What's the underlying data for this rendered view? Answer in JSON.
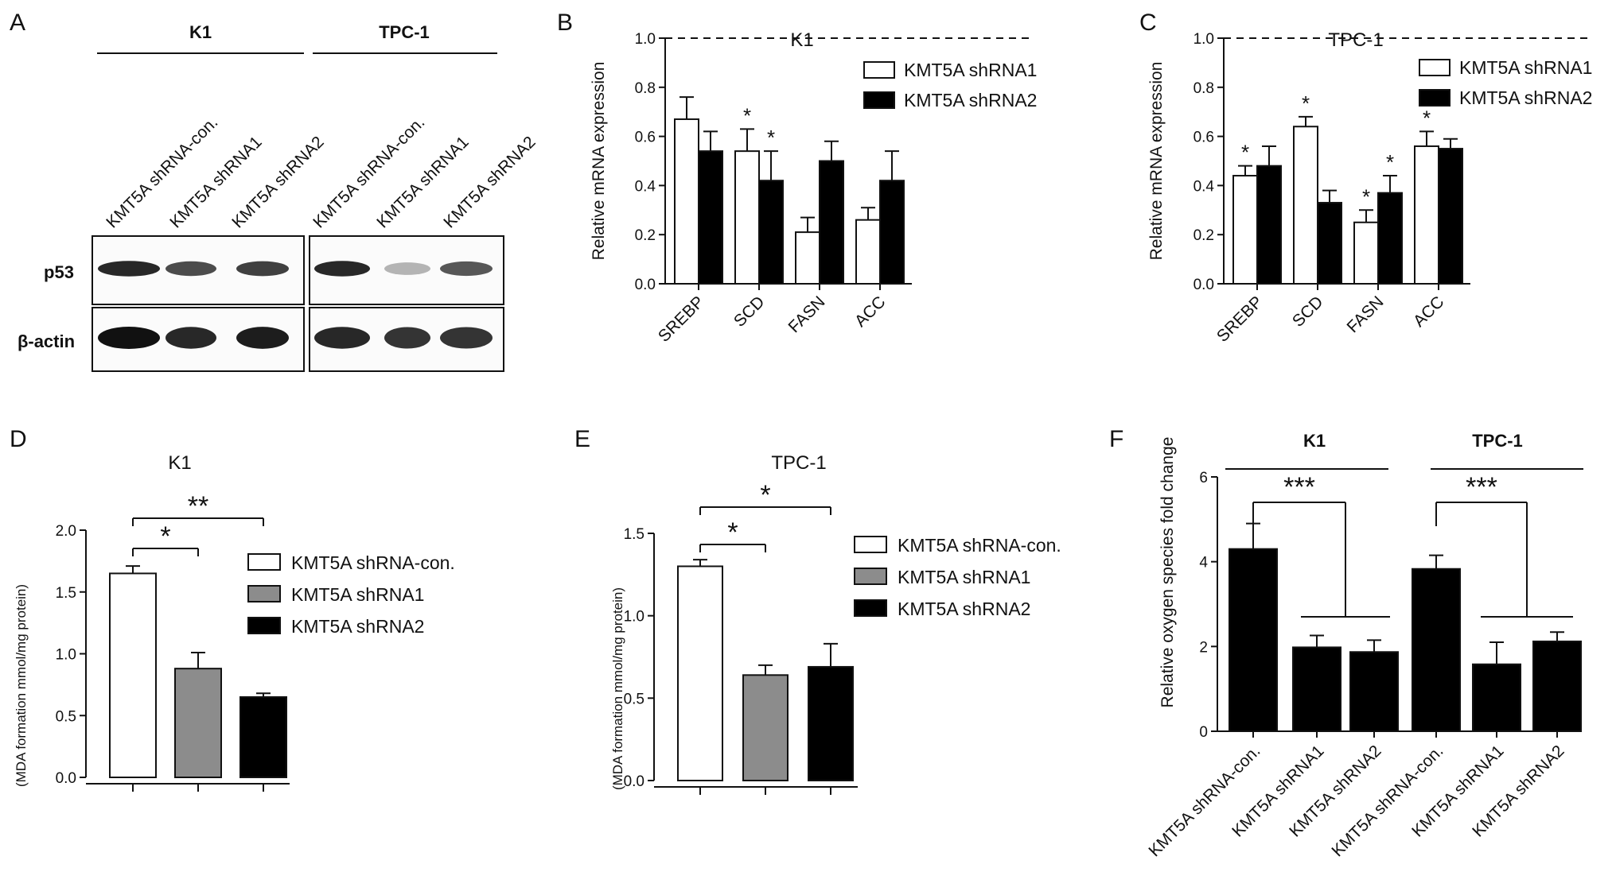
{
  "panel_labels": [
    "A",
    "B",
    "C",
    "D",
    "E",
    "F"
  ],
  "blot": {
    "groups": [
      "K1",
      "TPC-1"
    ],
    "lanes": [
      "KMT5A shRNA-con.",
      "KMT5A shRNA1",
      "KMT5A shRNA2",
      "KMT5A shRNA-con.",
      "KMT5A shRNA1",
      "KMT5A shRNA2"
    ],
    "rows": [
      "p53",
      "β-actin"
    ],
    "band_intensity": {
      "p53": [
        0.9,
        0.75,
        0.8,
        0.9,
        0.3,
        0.7
      ],
      "β-actin": [
        1.0,
        0.9,
        0.95,
        0.9,
        0.85,
        0.85
      ]
    }
  },
  "colors": {
    "con": "#ffffff",
    "shRNA1_mda": "#8c8c8c",
    "shRNA2": "#000000"
  },
  "chart_data": [
    {
      "id": "B",
      "type": "bar",
      "title": "K1",
      "ylabel": "Relative mRNA expression",
      "ylim": [
        0,
        1.0
      ],
      "yticks": [
        "0.0",
        "0.2",
        "0.4",
        "0.6",
        "0.8",
        "1.0"
      ],
      "categories": [
        "SREBP",
        "SCD",
        "FASN",
        "ACC"
      ],
      "reference_line": 1.0,
      "legend_position": "top-right",
      "series": [
        {
          "name": "KMT5A shRNA1",
          "values": [
            0.67,
            0.54,
            0.21,
            0.26
          ],
          "errors": [
            0.09,
            0.09,
            0.06,
            0.05
          ],
          "fill": "#ffffff"
        },
        {
          "name": "KMT5A shRNA2",
          "values": [
            0.54,
            0.42,
            0.5,
            0.42
          ],
          "errors": [
            0.08,
            0.12,
            0.08,
            0.12
          ],
          "fill": "#000000"
        }
      ],
      "significance": [
        "",
        "",
        "*",
        "*",
        "",
        "",
        "",
        ""
      ]
    },
    {
      "id": "C",
      "type": "bar",
      "title": "TPC-1",
      "ylabel": "Relative mRNA expression",
      "ylim": [
        0,
        1.0
      ],
      "yticks": [
        "0.0",
        "0.2",
        "0.4",
        "0.6",
        "0.8",
        "1.0"
      ],
      "categories": [
        "SREBP",
        "SCD",
        "FASN",
        "ACC"
      ],
      "reference_line": 1.0,
      "legend_position": "top-right",
      "series": [
        {
          "name": "KMT5A shRNA1",
          "values": [
            0.44,
            0.64,
            0.25,
            0.56
          ],
          "errors": [
            0.04,
            0.04,
            0.05,
            0.06
          ],
          "fill": "#ffffff"
        },
        {
          "name": "KMT5A shRNA2",
          "values": [
            0.48,
            0.33,
            0.37,
            0.55
          ],
          "errors": [
            0.08,
            0.05,
            0.07,
            0.04
          ],
          "fill": "#000000"
        }
      ],
      "significance": [
        "*",
        "",
        "*",
        "",
        "*",
        "*",
        "*",
        ""
      ]
    },
    {
      "id": "D",
      "type": "bar",
      "title": "K1",
      "ylabel": "(MDA formation mmol/mg protein)",
      "ylim": [
        0,
        2.0
      ],
      "yticks": [
        "0.0",
        "0.5",
        "1.0",
        "1.5",
        "2.0"
      ],
      "categories": [
        "KMT5A shRNA-con.",
        "KMT5A shRNA1",
        "KMT5A shRNA2"
      ],
      "values": [
        1.65,
        0.88,
        0.65
      ],
      "errors": [
        0.06,
        0.13,
        0.03
      ],
      "fills": [
        "#ffffff",
        "#8c8c8c",
        "#000000"
      ],
      "legend": [
        "KMT5A shRNA-con.",
        "KMT5A shRNA1",
        "KMT5A shRNA2"
      ],
      "legend_position": "right",
      "brackets": [
        {
          "from": 0,
          "to": 1,
          "label": "*"
        },
        {
          "from": 0,
          "to": 2,
          "label": "**"
        }
      ]
    },
    {
      "id": "E",
      "type": "bar",
      "title": "TPC-1",
      "ylabel": "(MDA formation mmol/mg protein)",
      "ylim": [
        0,
        1.5
      ],
      "yticks": [
        "0.0",
        "0.5",
        "1.0",
        "1.5"
      ],
      "categories": [
        "KMT5A shRNA-con.",
        "KMT5A shRNA1",
        "KMT5A shRNA2"
      ],
      "values": [
        1.3,
        0.64,
        0.69
      ],
      "errors": [
        0.04,
        0.06,
        0.14
      ],
      "fills": [
        "#ffffff",
        "#8c8c8c",
        "#000000"
      ],
      "legend": [
        "KMT5A shRNA-con.",
        "KMT5A shRNA1",
        "KMT5A shRNA2"
      ],
      "legend_position": "right",
      "brackets": [
        {
          "from": 0,
          "to": 1,
          "label": "*"
        },
        {
          "from": 0,
          "to": 2,
          "label": "*"
        }
      ]
    },
    {
      "id": "F",
      "type": "bar",
      "ylabel": "Relative oxygen species fold change",
      "ylim": [
        0,
        6
      ],
      "yticks": [
        "0",
        "2",
        "4",
        "6"
      ],
      "groups": [
        "K1",
        "TPC-1"
      ],
      "categories": [
        "KMT5A shRNA-con.",
        "KMT5A shRNA1",
        "KMT5A shRNA2",
        "KMT5A shRNA-con.",
        "KMT5A shRNA1",
        "KMT5A shRNA2"
      ],
      "values": [
        4.3,
        1.98,
        1.87,
        3.83,
        1.58,
        2.12
      ],
      "errors": [
        0.6,
        0.28,
        0.28,
        0.32,
        0.52,
        0.22
      ],
      "fills": [
        "#000000",
        "#000000",
        "#000000",
        "#000000",
        "#000000",
        "#000000"
      ],
      "significance": [
        "***",
        "***"
      ]
    }
  ]
}
